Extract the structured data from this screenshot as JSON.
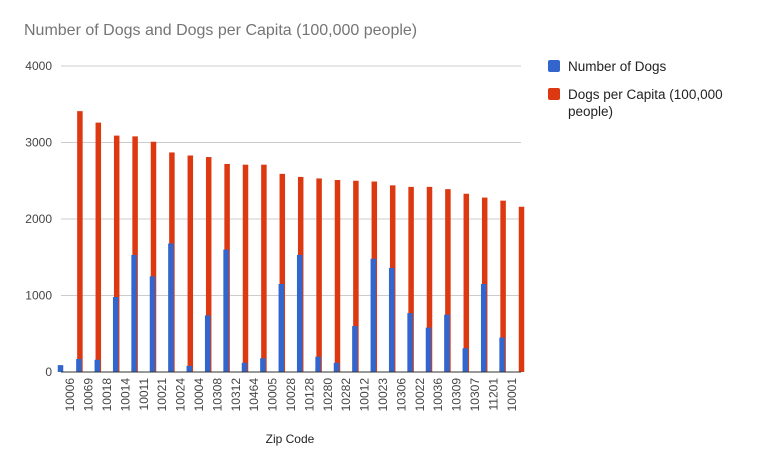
{
  "chart_data": {
    "type": "bar",
    "title": "Number of Dogs and Dogs per Capita (100,000 people)",
    "xlabel": "Zip Code",
    "ylabel": "",
    "ylim": [
      0,
      4000
    ],
    "yticks": [
      0,
      1000,
      2000,
      3000,
      4000
    ],
    "grid": true,
    "legend_position": "right",
    "categories": [
      "10006",
      "10069",
      "10018",
      "10014",
      "10011",
      "10021",
      "10024",
      "10004",
      "10308",
      "10312",
      "10464",
      "10005",
      "10028",
      "10128",
      "10280",
      "10282",
      "10012",
      "10023",
      "10306",
      "10022",
      "10036",
      "10309",
      "10307",
      "11201",
      "10001"
    ],
    "series": [
      {
        "name": "Number of Dogs",
        "color": "#3366cc",
        "values": [
          90,
          170,
          160,
          980,
          1530,
          1250,
          1680,
          80,
          740,
          1600,
          120,
          180,
          1150,
          1530,
          200,
          120,
          600,
          1480,
          1360,
          770,
          580,
          750,
          310,
          1150,
          450
        ]
      },
      {
        "name": "Dogs per Capita (100,000 people)",
        "color": "#dc3912",
        "values": [
          3410,
          3260,
          3090,
          3080,
          3010,
          2870,
          2830,
          2810,
          2720,
          2710,
          2710,
          2590,
          2550,
          2530,
          2510,
          2500,
          2490,
          2440,
          2420,
          2420,
          2390,
          2330,
          2280,
          2240,
          2160
        ]
      }
    ]
  }
}
